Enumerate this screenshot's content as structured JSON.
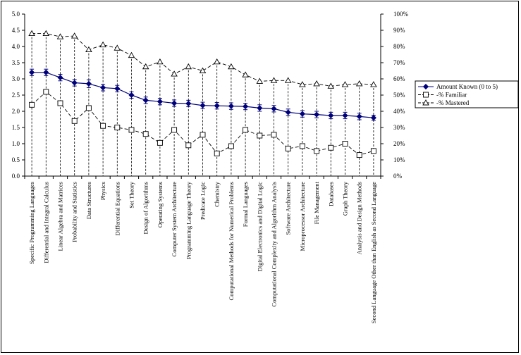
{
  "chart_data": {
    "type": "line",
    "categories": [
      "Specific Programming Languages",
      "Differential and Integral Calculus",
      "Linear Algebra and Matrices",
      "Probability and Statistics",
      "Data Structures",
      "Physics",
      "Differential Equations",
      "Set Theory",
      "Design of Algorithms",
      "Operating Systems",
      "Computer System Architecture",
      "Programming Language Theory",
      "Predicate Logic",
      "Chemistry",
      "Computational Methods for Numerical Problems",
      "Formal Languages",
      "Digital Electronics and Digital Logic",
      "Computational Complexity and Algorithm Analysis",
      "Software Architecture",
      "Microprocessor Architecture",
      "File Management",
      "Databases",
      "Graph Theory",
      "Analysis and Design Methods",
      "Second Language Other than English as Second Language"
    ],
    "series": [
      {
        "name": "Amount Known (0 to 5)",
        "axis": "left",
        "marker": "diamond",
        "line": "solid",
        "values": [
          3.2,
          3.2,
          3.04,
          2.88,
          2.85,
          2.73,
          2.7,
          2.5,
          2.34,
          2.3,
          2.25,
          2.24,
          2.18,
          2.17,
          2.16,
          2.15,
          2.1,
          2.08,
          1.97,
          1.92,
          1.9,
          1.87,
          1.87,
          1.84,
          1.8
        ],
        "error": [
          0.1,
          0.1,
          0.1,
          0.1,
          0.12,
          0.1,
          0.1,
          0.1,
          0.1,
          0.1,
          0.1,
          0.1,
          0.1,
          0.1,
          0.1,
          0.1,
          0.1,
          0.1,
          0.1,
          0.1,
          0.1,
          0.1,
          0.1,
          0.1,
          0.08
        ]
      },
      {
        "name": "-% Familiar",
        "axis": "right",
        "marker": "square",
        "line": "dashed",
        "values": [
          44,
          52,
          45,
          34,
          42,
          31,
          30,
          28.5,
          26,
          20.5,
          28.5,
          19,
          25.5,
          14,
          18.5,
          28.5,
          25,
          25.5,
          17,
          18.5,
          15.5,
          17.5,
          20,
          13,
          15.5
        ]
      },
      {
        "name": "-% Mastered",
        "axis": "right",
        "marker": "triangle",
        "line": "dashed",
        "values": [
          88,
          88,
          86,
          86.5,
          78,
          81,
          79,
          74.5,
          67.5,
          70.5,
          63,
          67.5,
          65,
          70.5,
          67.5,
          62.5,
          58.5,
          59,
          59,
          56.5,
          57,
          55.5,
          56.5,
          57,
          56.5
        ]
      }
    ],
    "y_left": {
      "min": 0,
      "max": 5,
      "step": 0.5,
      "tick_labels": [
        "0.0",
        "0.5",
        "1.0",
        "1.5",
        "2.0",
        "2.5",
        "3.0",
        "3.5",
        "4.0",
        "4.5",
        "5.0"
      ]
    },
    "y_right": {
      "min": 0,
      "max": 100,
      "step": 10,
      "tick_labels": [
        "0%",
        "10%",
        "20%",
        "30%",
        "40%",
        "50%",
        "60%",
        "70%",
        "80%",
        "90%",
        "100%"
      ]
    },
    "category_drop_lines": true,
    "legend_position": "right",
    "grid": false,
    "title": "",
    "xlabel": "",
    "ylabel": ""
  }
}
